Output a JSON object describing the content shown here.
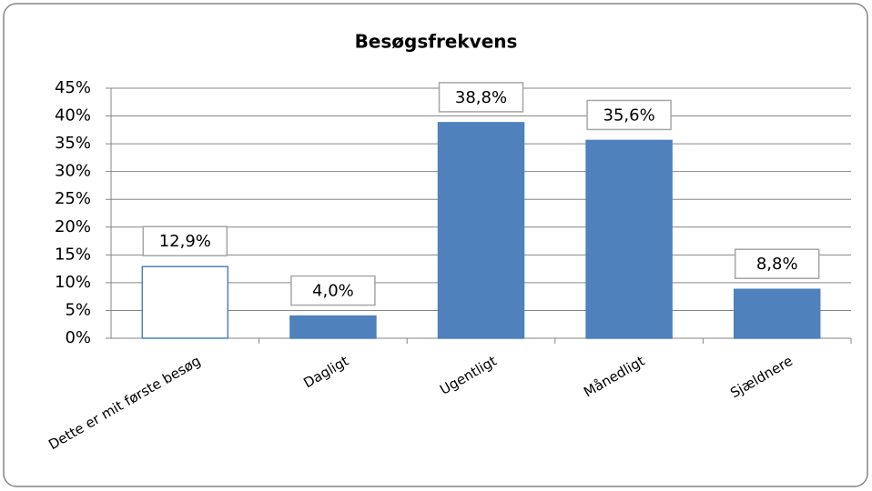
{
  "chart_data": {
    "type": "bar",
    "title": "Besøgsfrekvens",
    "categories": [
      "Dette er mit første besøg",
      "Dagligt",
      "Ugentligt",
      "Månedligt",
      "Sjældnere"
    ],
    "values": [
      12.9,
      4.0,
      38.8,
      35.6,
      8.8
    ],
    "value_labels": [
      "12,9%",
      "4,0%",
      "38,8%",
      "35,6%",
      "8,8%"
    ],
    "colors": [
      "#ffffff",
      "#4f81bd",
      "#4f81bd",
      "#4f81bd",
      "#4f81bd"
    ],
    "edge_color": "#4f81bd",
    "ylim": [
      0,
      45
    ],
    "yticks": [
      {
        "value": 0,
        "label": "0%"
      },
      {
        "value": 5,
        "label": "5%"
      },
      {
        "value": 10,
        "label": "10%"
      },
      {
        "value": 15,
        "label": "15%"
      },
      {
        "value": 20,
        "label": "20%"
      },
      {
        "value": 25,
        "label": "25%"
      },
      {
        "value": 30,
        "label": "30%"
      },
      {
        "value": 35,
        "label": "35%"
      },
      {
        "value": 40,
        "label": "40%"
      },
      {
        "value": 45,
        "label": "45%"
      }
    ],
    "grid": true
  }
}
